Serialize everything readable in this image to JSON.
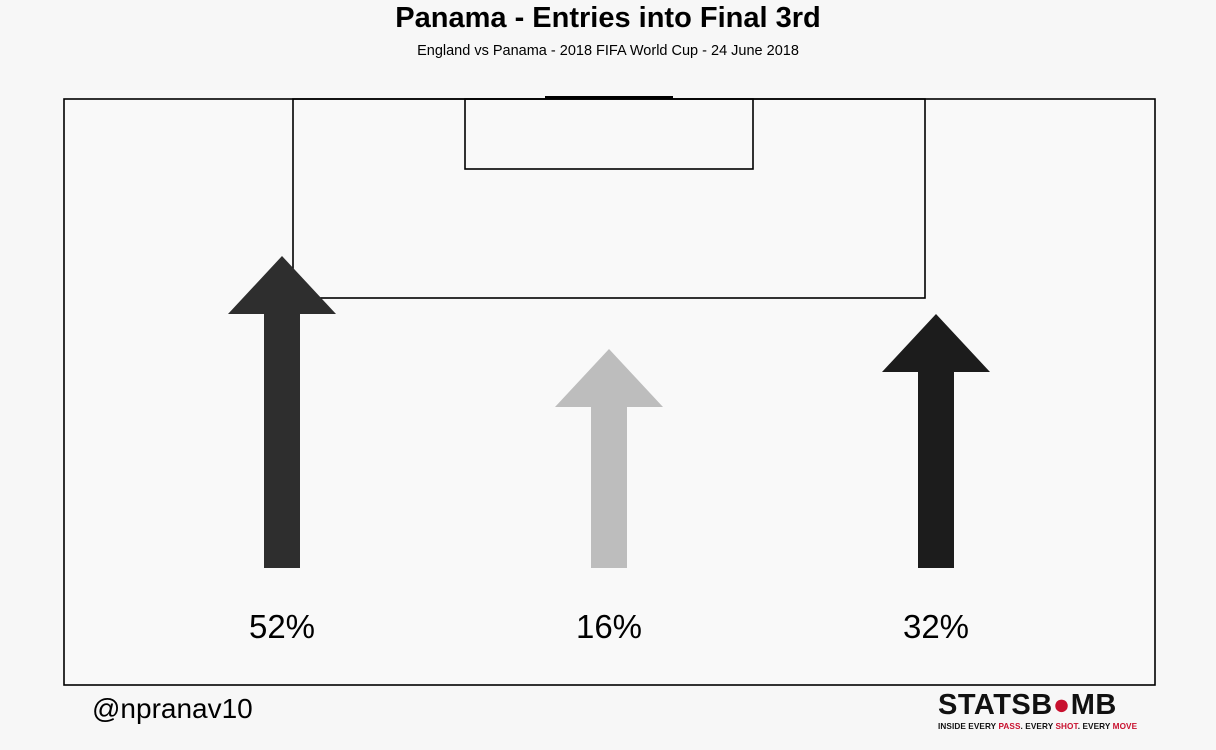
{
  "title": "Panama - Entries into Final 3rd",
  "subtitle": "England vs Panama  -  2018 FIFA World Cup  -  24 June 2018",
  "chart_data": {
    "type": "bar",
    "categories": [
      "Left",
      "Centre",
      "Right"
    ],
    "values": [
      52,
      16,
      32
    ],
    "labels": [
      "52%",
      "16%",
      "32%"
    ],
    "colors": [
      "#2e2e2e",
      "#bdbdbd",
      "#1c1c1c"
    ]
  },
  "footer": {
    "handle": "@npranav10",
    "logo": {
      "part1": "STATSB",
      "part2": "MB",
      "tag1": "INSIDE EVERY ",
      "tag2": "PASS",
      "tag3": ". EVERY ",
      "tag4": "SHOT",
      "tag5": ". EVERY ",
      "tag6": "MOVE"
    }
  }
}
